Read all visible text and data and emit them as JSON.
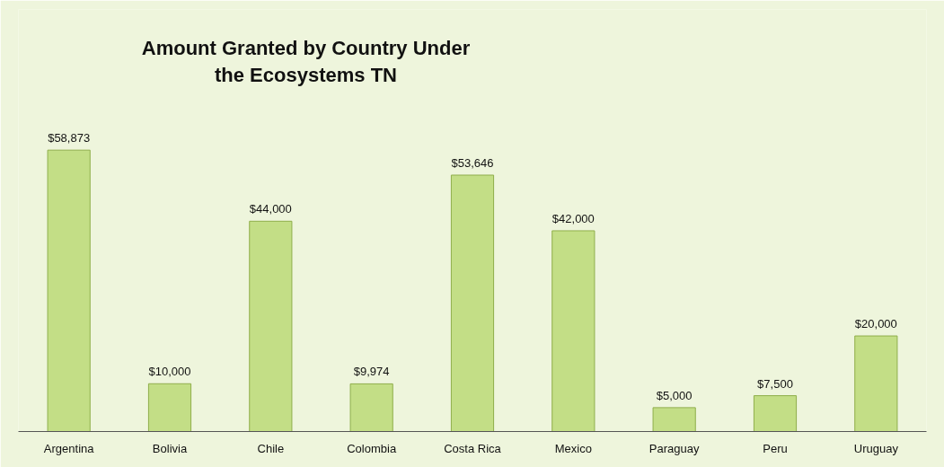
{
  "chart_data": {
    "type": "bar",
    "title": "Amount Granted by Country Under the Ecosystems TN",
    "categories": [
      "Argentina",
      "Bolivia",
      "Chile",
      "Colombia",
      "Costa Rica",
      "Mexico",
      "Paraguay",
      "Peru",
      "Uruguay"
    ],
    "values": [
      58873,
      10000,
      44000,
      9974,
      53646,
      42000,
      5000,
      7500,
      20000
    ],
    "value_labels": [
      "$58,873",
      "$10,000",
      "$44,000",
      "$9,974",
      "$53,646",
      "$42,000",
      "$5,000",
      "$7,500",
      "$20,000"
    ],
    "color": "#c3de86",
    "grid": false
  }
}
